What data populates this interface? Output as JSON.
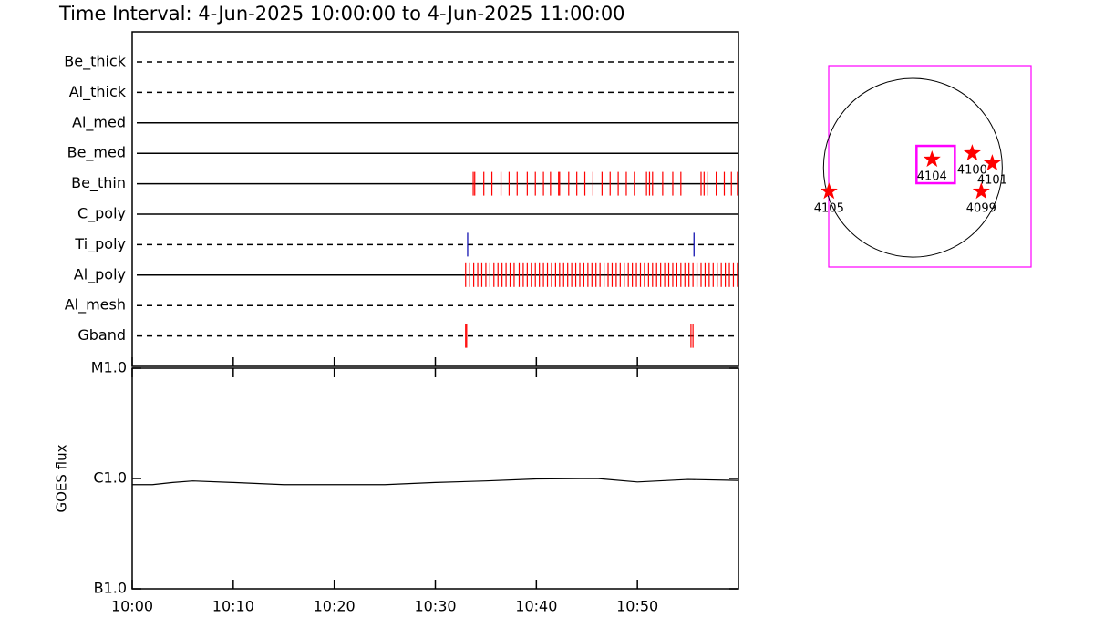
{
  "chart_data": [
    {
      "type": "timeline",
      "title": "Time Interval:  4-Jun-2025 10:00:00 to  4-Jun-2025 11:00:00",
      "xlim": [
        0,
        60
      ],
      "series": [
        {
          "name": "Be_thick",
          "dashed": true,
          "color": "#ff0000",
          "values": []
        },
        {
          "name": "Al_thick",
          "dashed": true,
          "color": "#ff0000",
          "values": []
        },
        {
          "name": "Al_med",
          "dashed": false,
          "color": "#ff0000",
          "values": []
        },
        {
          "name": "Be_med",
          "dashed": false,
          "color": "#ff0000",
          "values": []
        },
        {
          "name": "Be_thin",
          "dashed": false,
          "color": "#ff0000",
          "values": [
            33.75,
            33.9,
            34.8,
            35.6,
            36.5,
            37.3,
            38.1,
            39.1,
            39.9,
            40.7,
            41.4,
            42.2,
            42.3,
            43.2,
            44.0,
            44.8,
            45.6,
            46.5,
            47.3,
            48.1,
            48.9,
            49.7,
            50.9,
            51.2,
            51.5,
            52.5,
            53.5,
            54.3,
            56.3,
            56.6,
            56.9,
            57.8,
            58.6,
            59.3,
            59.9
          ]
        },
        {
          "name": "C_poly",
          "dashed": false,
          "color": "#ff0000",
          "values": []
        },
        {
          "name": "Ti_poly",
          "dashed": true,
          "color": "#0000aa",
          "values": [
            33.2,
            55.6
          ]
        },
        {
          "name": "Al_poly",
          "dashed": false,
          "color": "#ff0000",
          "values": [
            33.0,
            33.4,
            33.8,
            34.2,
            34.6,
            35.0,
            35.4,
            35.8,
            36.2,
            36.6,
            37.0,
            37.4,
            37.8,
            38.3,
            38.7,
            39.1,
            39.5,
            39.9,
            40.3,
            40.7,
            41.1,
            41.5,
            41.9,
            42.3,
            42.7,
            43.1,
            43.5,
            43.9,
            44.3,
            44.7,
            45.1,
            45.5,
            45.9,
            46.3,
            46.7,
            47.1,
            47.5,
            47.9,
            48.3,
            48.7,
            49.1,
            49.5,
            49.9,
            50.3,
            50.7,
            51.1,
            51.5,
            51.9,
            52.3,
            52.7,
            53.1,
            53.5,
            53.9,
            54.3,
            54.7,
            55.1,
            55.5,
            55.9,
            56.3,
            56.7,
            57.1,
            57.5,
            57.9,
            58.3,
            58.7,
            59.1,
            59.5,
            59.9
          ]
        },
        {
          "name": "Al_mesh",
          "dashed": true,
          "color": "#ff0000",
          "values": []
        },
        {
          "name": "Gband",
          "dashed": true,
          "color": "#ff0000",
          "values": [
            33.0,
            33.1,
            55.3,
            55.5
          ]
        }
      ]
    },
    {
      "type": "line",
      "ylabel": "GOES flux",
      "log_y": true,
      "color": "#000000",
      "xlim": [
        0,
        60
      ],
      "xticks": [
        {
          "value": 0,
          "label": "10:00"
        },
        {
          "value": 10,
          "label": "10:10"
        },
        {
          "value": 20,
          "label": "10:20"
        },
        {
          "value": 30,
          "label": "10:30"
        },
        {
          "value": 40,
          "label": "10:40"
        },
        {
          "value": 50,
          "label": "10:50"
        }
      ],
      "ylim": [
        1e-07,
        1e-05
      ],
      "yticks": [
        {
          "value": 1e-07,
          "label": "B1.0"
        },
        {
          "value": 1e-06,
          "label": "C1.0"
        },
        {
          "value": 1e-05,
          "label": "M1.0"
        }
      ],
      "x": [
        0,
        2,
        4,
        6,
        10,
        15,
        20,
        25,
        30,
        35,
        40,
        46,
        50,
        55,
        60
      ],
      "values": [
        8.8e-07,
        8.8e-07,
        9.2e-07,
        9.5e-07,
        9.2e-07,
        8.8e-07,
        8.8e-07,
        8.8e-07,
        9.2e-07,
        9.5e-07,
        9.9e-07,
        1e-06,
        9.3e-07,
        9.8e-07,
        9.6e-07
      ]
    },
    {
      "type": "map",
      "xlim": [
        -890,
        1250
      ],
      "ylim": [
        -1050,
        1080
      ],
      "box_color": "#ff00ff",
      "solar_radius": 945,
      "fov": {
        "xc": 241,
        "yc": 34,
        "width": 405,
        "height": 395
      },
      "marker_color": "#ff0000",
      "names": [
        "4104",
        "4100",
        "4101",
        "4099",
        "4105"
      ],
      "x": [
        202,
        627,
        839,
        723,
        -887
      ],
      "y": [
        87,
        154,
        48,
        -251,
        -251
      ]
    }
  ]
}
